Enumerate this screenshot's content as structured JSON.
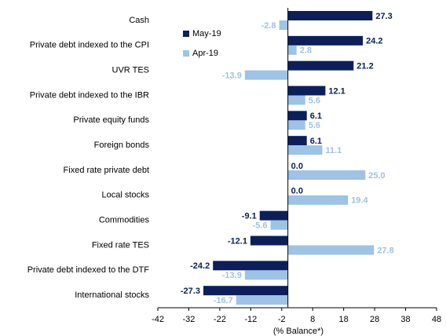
{
  "chart_data": {
    "type": "hbar",
    "x_label": "(% Balance*)",
    "categories": [
      "Cash",
      "Private debt indexed to the CPI",
      "UVR TES",
      "Private debt indexed to the IBR",
      "Private equity funds",
      "Foreign bonds",
      "Fixed rate private debt",
      "Local stocks",
      "Commodities",
      "Fixed rate TES",
      "Private debt indexed to the DTF",
      "International stocks"
    ],
    "series": [
      {
        "name": "May-19",
        "color": "#0c1f5b",
        "values": [
          27.3,
          24.2,
          21.2,
          12.1,
          6.1,
          6.1,
          0,
          0,
          -9.1,
          -12.1,
          -24.2,
          -27.3
        ],
        "value_labels": [
          "27.3",
          "24.2",
          "21.2",
          "12.1",
          "6.1",
          "6.1",
          "0.0",
          "0.0",
          "-9.1",
          "-12.1",
          "-24.2",
          "-27.3"
        ]
      },
      {
        "name": "Apr-19",
        "color": "#9dc3e6",
        "values": [
          -2.8,
          2.8,
          -13.9,
          5.6,
          5.6,
          11.1,
          25,
          19.4,
          -5.6,
          27.8,
          -13.9,
          -16.7
        ],
        "value_labels": [
          "-2.8",
          "2.8",
          "-13.9",
          "5.6",
          "5.6",
          "11.1",
          "25.0",
          "19.4",
          "-5.6",
          "27.8",
          "-13.9",
          "-16.7"
        ]
      }
    ],
    "xlim": [
      -42,
      48
    ],
    "xticks": [
      -42,
      -32,
      -22,
      -12,
      -2,
      8,
      18,
      28,
      38,
      48
    ],
    "legend": "upper-left"
  }
}
